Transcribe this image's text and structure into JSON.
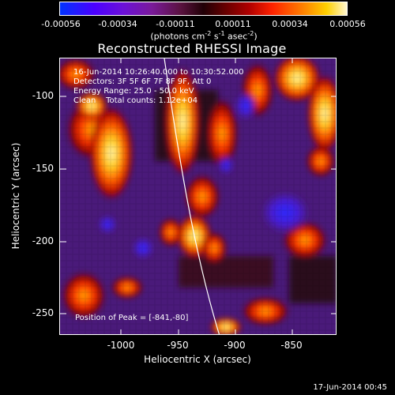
{
  "colorbar": {
    "ticks": [
      "-0.00056",
      "-0.00034",
      "-0.00011",
      "0.00011",
      "0.00034",
      "0.00056"
    ],
    "units_text": "(photons cm",
    "units_exp1": "-2",
    "units_mid": " s",
    "units_exp2": "-1",
    "units_mid2": " asec",
    "units_exp3": "-2",
    "units_close": ")"
  },
  "title": "Reconstructed RHESSI Image",
  "info": {
    "line1": "16-Jun-2014 10:26:40.000 to 10:30:52.000",
    "line2": "Detectors: 3F 5F 6F 7F 8F 9F, Att 0",
    "line3": "Energy Range: 25.0 - 50.0 keV",
    "line4": "Clean    Total counts: 1.12e+04",
    "peak": "Position of Peak = [-841,-80]"
  },
  "axes": {
    "xlabel": "Heliocentric X (arcsec)",
    "ylabel": "Heliocentric Y (arcsec)",
    "xticks": [
      "-1000",
      "-950",
      "-900",
      "-850"
    ],
    "yticks": [
      "-100",
      "-150",
      "-200",
      "-250"
    ]
  },
  "footer": {
    "timestamp": "17-Jun-2014 00:45"
  }
}
